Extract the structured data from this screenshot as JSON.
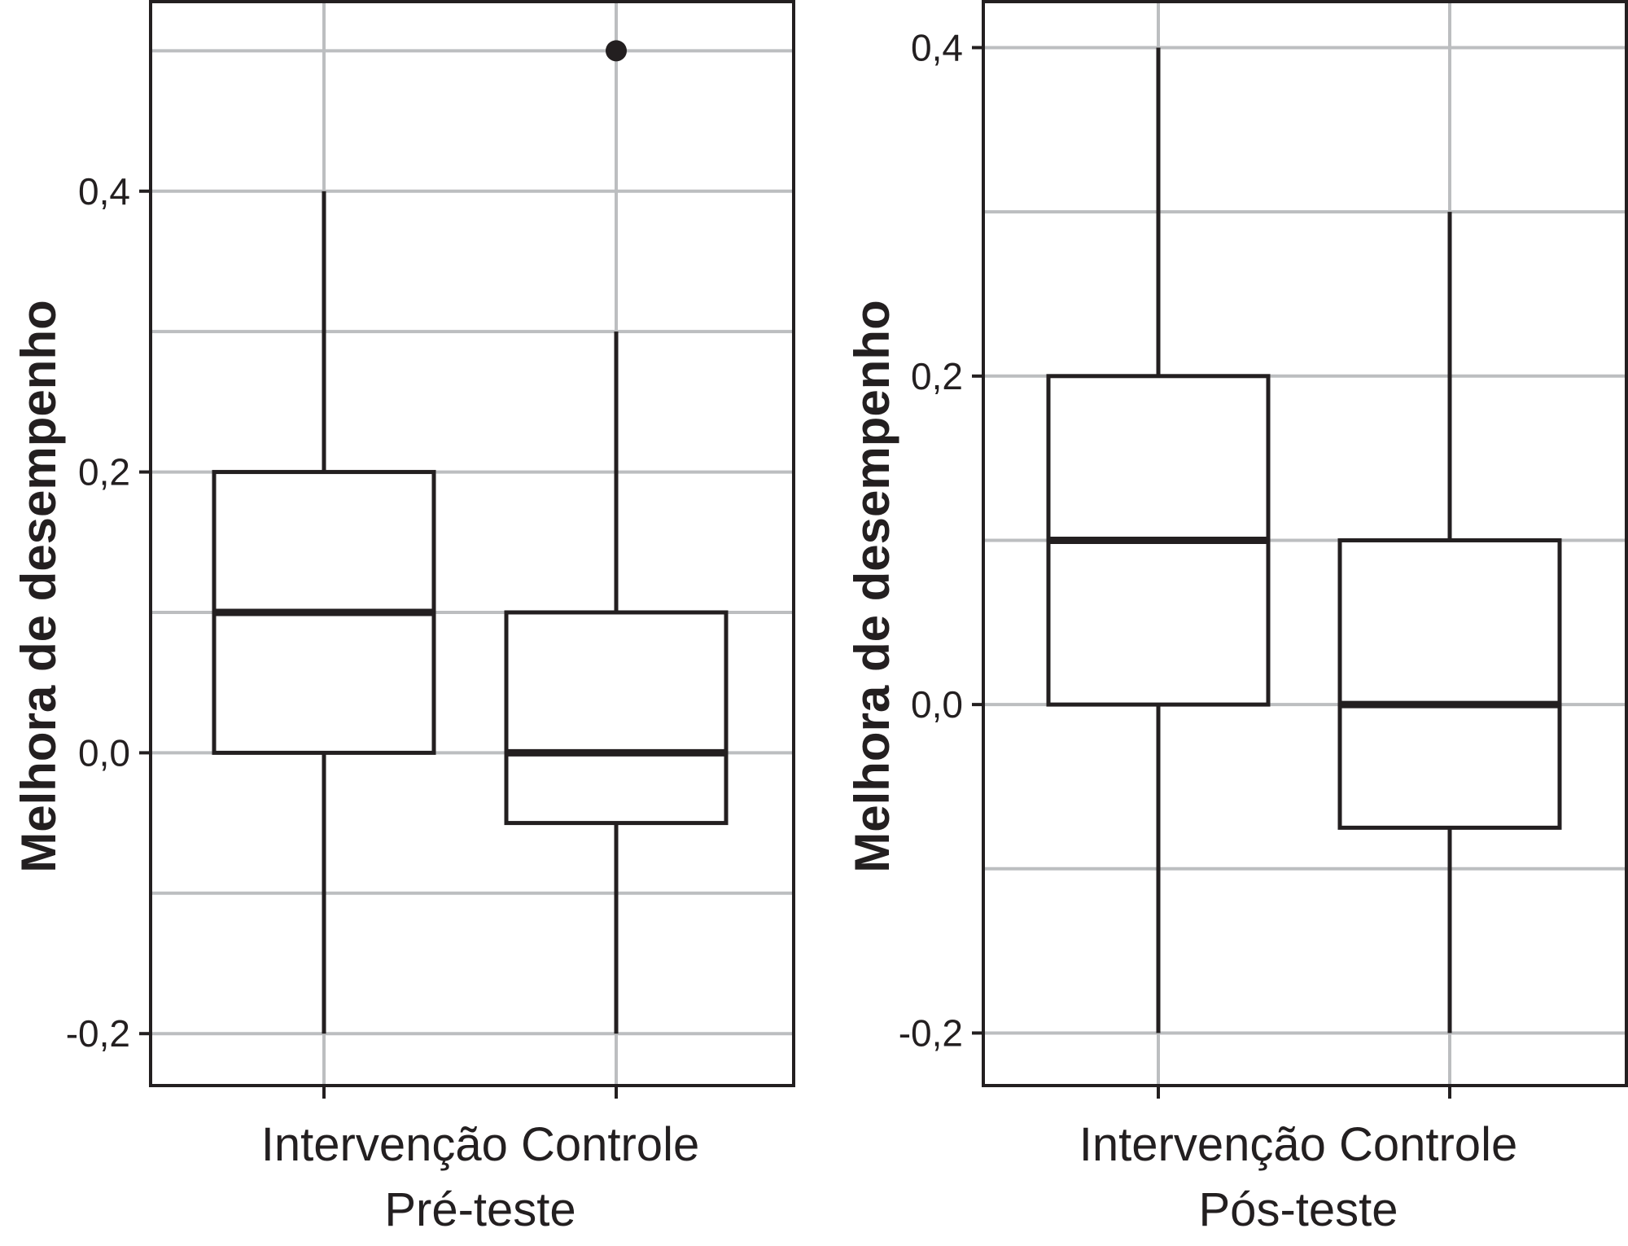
{
  "chart_data": [
    {
      "type": "box",
      "ylabel": "Melhora de desempenho",
      "xlabel": "Pré-teste",
      "categories": [
        "Intervenção",
        "Controle"
      ],
      "yticks": [
        -0.2,
        0.0,
        0.2,
        0.4
      ],
      "ytick_labels": [
        "-0,2",
        "0,0",
        "0,2",
        "0,4"
      ],
      "ylim": [
        -0.237,
        0.535
      ],
      "grid": true,
      "boxes": [
        {
          "name": "Intervenção",
          "min": -0.2,
          "q1": 0.0,
          "median": 0.1,
          "q3": 0.2,
          "max": 0.4,
          "outliers": []
        },
        {
          "name": "Controle",
          "min": -0.2,
          "q1": -0.05,
          "median": 0.0,
          "q3": 0.1,
          "max": 0.3,
          "outliers": [
            0.5
          ]
        }
      ]
    },
    {
      "type": "box",
      "ylabel": "Melhora de desempenho",
      "xlabel": "Pós-teste",
      "categories": [
        "Intervenção",
        "Controle"
      ],
      "yticks": [
        -0.2,
        0.0,
        0.2,
        0.4
      ],
      "ytick_labels": [
        "-0,2",
        "0,0",
        "0,2",
        "0,4"
      ],
      "ylim": [
        -0.232,
        0.428
      ],
      "grid": true,
      "boxes": [
        {
          "name": "Intervenção",
          "min": -0.2,
          "q1": 0.0,
          "median": 0.1,
          "q3": 0.2,
          "max": 0.4,
          "outliers": []
        },
        {
          "name": "Controle",
          "min": -0.2,
          "q1": -0.075,
          "median": 0.0,
          "q3": 0.1,
          "max": 0.3,
          "outliers": []
        }
      ]
    }
  ]
}
